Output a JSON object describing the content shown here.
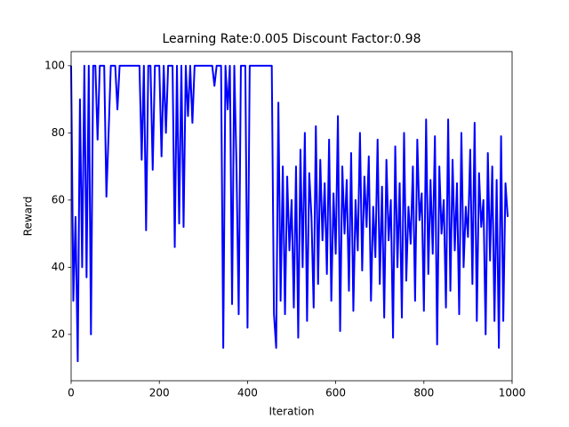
{
  "chart_data": {
    "type": "line",
    "title": "Learning Rate:0.005 Discount Factor:0.98",
    "x_label": "Iteration",
    "y_label": "Reward",
    "color": "#0000ff",
    "grid": false,
    "xlim": [
      0,
      1000
    ],
    "xticks": [
      0,
      200,
      400,
      600,
      800,
      1000
    ],
    "ylim": [
      6.2,
      104.2
    ],
    "yticks": [
      20,
      40,
      60,
      80,
      100
    ],
    "x": [
      0,
      5,
      10,
      15,
      20,
      25,
      30,
      35,
      40,
      45,
      50,
      55,
      60,
      65,
      70,
      75,
      80,
      85,
      90,
      95,
      100,
      105,
      110,
      115,
      120,
      125,
      130,
      135,
      140,
      145,
      150,
      155,
      160,
      165,
      170,
      175,
      180,
      185,
      190,
      195,
      200,
      205,
      210,
      215,
      220,
      225,
      230,
      235,
      240,
      245,
      250,
      255,
      260,
      265,
      270,
      275,
      280,
      285,
      290,
      295,
      300,
      305,
      310,
      315,
      320,
      325,
      330,
      335,
      340,
      345,
      350,
      355,
      360,
      365,
      370,
      375,
      380,
      385,
      390,
      395,
      400,
      405,
      410,
      415,
      420,
      425,
      430,
      435,
      440,
      445,
      450,
      455,
      460,
      465,
      470,
      475,
      480,
      485,
      490,
      495,
      500,
      505,
      510,
      515,
      520,
      525,
      530,
      535,
      540,
      545,
      550,
      555,
      560,
      565,
      570,
      575,
      580,
      585,
      590,
      595,
      600,
      605,
      610,
      615,
      620,
      625,
      630,
      635,
      640,
      645,
      650,
      655,
      660,
      665,
      670,
      675,
      680,
      685,
      690,
      695,
      700,
      705,
      710,
      715,
      720,
      725,
      730,
      735,
      740,
      745,
      750,
      755,
      760,
      765,
      770,
      775,
      780,
      785,
      790,
      795,
      800,
      805,
      810,
      815,
      820,
      825,
      830,
      835,
      840,
      845,
      850,
      855,
      860,
      865,
      870,
      875,
      880,
      885,
      890,
      895,
      900,
      905,
      910,
      915,
      920,
      925,
      930,
      935,
      940,
      945,
      950,
      955,
      960,
      965,
      970,
      975,
      980,
      985,
      990
    ],
    "values": [
      100,
      30,
      55,
      12,
      90,
      40,
      100,
      37,
      100,
      20,
      100,
      100,
      78,
      100,
      100,
      100,
      61,
      80,
      100,
      100,
      100,
      87,
      100,
      100,
      100,
      100,
      100,
      100,
      100,
      100,
      100,
      100,
      72,
      100,
      51,
      100,
      100,
      69,
      100,
      100,
      100,
      73,
      100,
      80,
      100,
      100,
      100,
      46,
      100,
      53,
      100,
      52,
      100,
      85,
      100,
      83,
      100,
      100,
      100,
      100,
      100,
      100,
      100,
      100,
      100,
      94,
      100,
      100,
      100,
      16,
      100,
      87,
      100,
      29,
      100,
      70,
      26,
      100,
      100,
      100,
      22,
      100,
      100,
      100,
      100,
      100,
      100,
      100,
      100,
      100,
      100,
      100,
      26,
      16,
      89,
      30,
      70,
      26,
      67,
      45,
      60,
      28,
      70,
      19,
      75,
      40,
      80,
      24,
      68,
      55,
      28,
      82,
      35,
      72,
      48,
      65,
      38,
      78,
      30,
      62,
      44,
      85,
      21,
      70,
      50,
      66,
      33,
      74,
      27,
      60,
      45,
      80,
      39,
      67,
      52,
      73,
      30,
      58,
      43,
      78,
      35,
      64,
      25,
      72,
      48,
      60,
      19,
      76,
      40,
      65,
      25,
      80,
      36,
      58,
      47,
      70,
      30,
      78,
      54,
      62,
      27,
      84,
      38,
      66,
      44,
      79,
      17,
      70,
      50,
      60,
      28,
      84,
      33,
      72,
      45,
      65,
      26,
      80,
      40,
      58,
      49,
      75,
      35,
      83,
      24,
      68,
      52,
      60,
      20,
      74,
      42,
      70,
      24,
      66,
      16,
      79,
      24,
      65,
      55
    ]
  }
}
